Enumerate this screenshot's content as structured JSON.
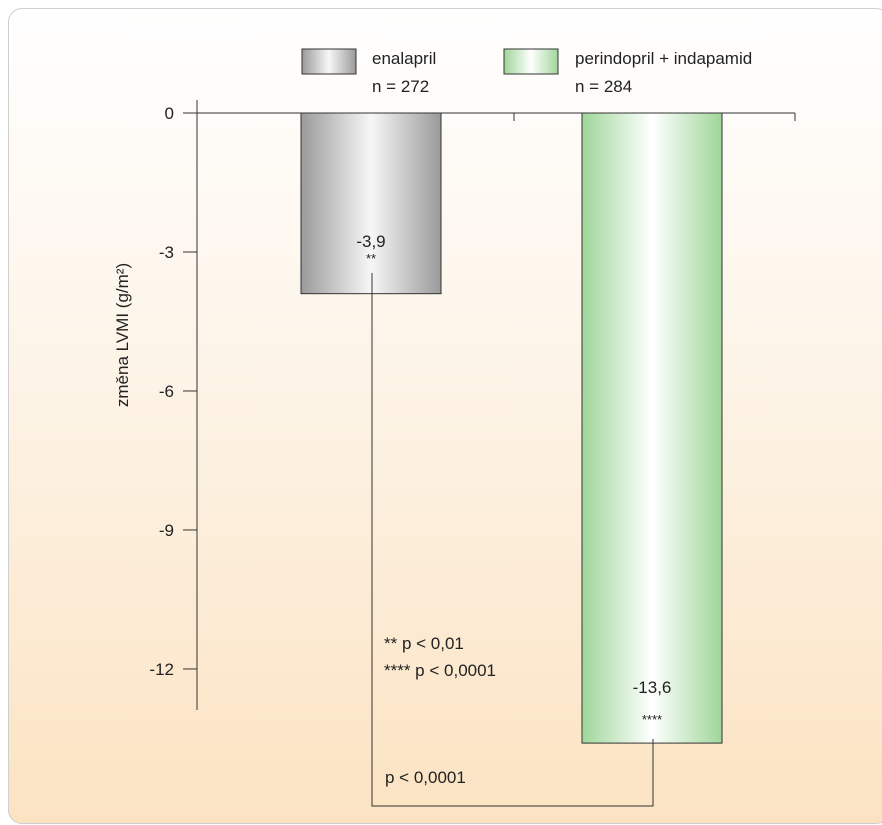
{
  "chart_data": {
    "type": "bar",
    "categories": [
      "enalapril",
      "perindopril + indapamid"
    ],
    "values": [
      -3.9,
      -13.6
    ],
    "ylabel": "změna LVMI (g/m²)",
    "ylim": [
      -13.6,
      0
    ],
    "yticks": [
      "0",
      "-3",
      "-6",
      "-9",
      "-12"
    ],
    "grid": false,
    "legend": [
      {
        "label": "enalapril",
        "n": "n = 272"
      },
      {
        "label": "perindopril + indapamid",
        "n": "n = 284"
      }
    ],
    "bar_labels": [
      "-3,9",
      "-13,6"
    ],
    "bar_significance": [
      "**",
      "****"
    ],
    "footnotes": [
      "** p < 0,01",
      "**** p < 0,0001"
    ],
    "comparison_label": "p < 0,0001"
  },
  "colors": {
    "enalapril_light": "#f7f7f7",
    "enalapril_dark": "#9a9a9a",
    "combo_light": "#ffffff",
    "combo_dark": "#9fd69a",
    "axis": "#333333"
  }
}
